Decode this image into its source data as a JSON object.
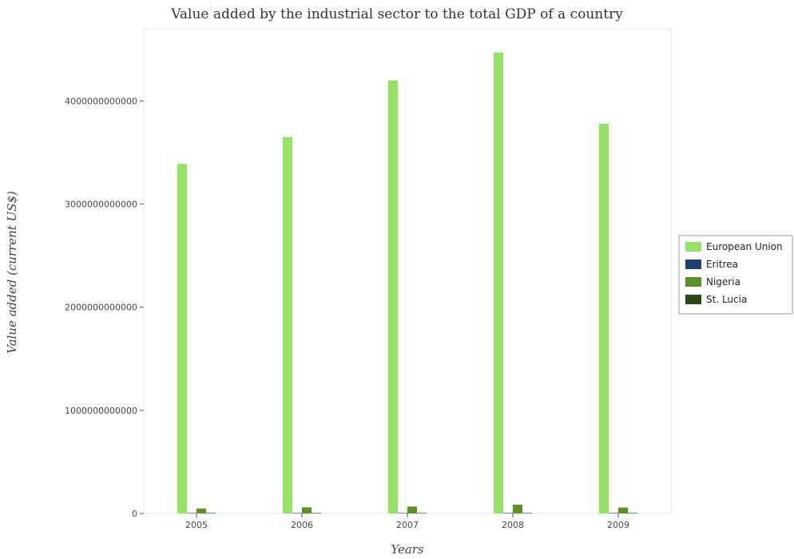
{
  "title": "Value added by the industrial sector to the total GDP of a country",
  "chart_data": {
    "type": "bar",
    "title": "Value added by the industrial sector to the total GDP of a country",
    "xlabel": "Years",
    "ylabel": "Value added (current US$)",
    "categories": [
      "2005",
      "2006",
      "2007",
      "2008",
      "2009"
    ],
    "ylim": [
      0,
      4700000000000
    ],
    "yticks": [
      0,
      1000000000000,
      2000000000000,
      3000000000000,
      4000000000000
    ],
    "ytick_labels": [
      "0",
      "1000000000000",
      "2000000000000",
      "3000000000000",
      "4000000000000"
    ],
    "grid": false,
    "legend_position": "right",
    "series": [
      {
        "name": "European Union",
        "color": "#98e06a",
        "values": [
          3390000000000,
          3650000000000,
          4200000000000,
          4470000000000,
          3780000000000
        ]
      },
      {
        "name": "Eritrea",
        "color": "#1f3f73",
        "values": [
          200000000,
          200000000,
          230000000,
          250000000,
          300000000
        ]
      },
      {
        "name": "Nigeria",
        "color": "#5f8f2b",
        "values": [
          48000000000,
          60000000000,
          67000000000,
          86000000000,
          57000000000
        ]
      },
      {
        "name": "St. Lucia",
        "color": "#2d4a16",
        "values": [
          160000000,
          170000000,
          180000000,
          190000000,
          180000000
        ]
      }
    ]
  }
}
